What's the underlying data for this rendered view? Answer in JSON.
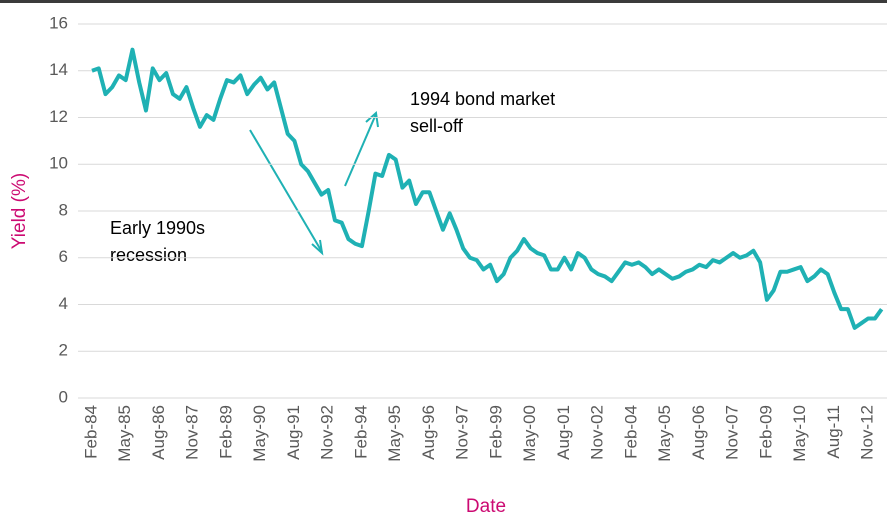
{
  "chart_data": {
    "type": "line",
    "ylabel": "Yield (%)",
    "xlabel": "Date",
    "annotations": [
      [
        "1994 bond market",
        "sell-off"
      ],
      [
        "Early 1990s",
        "recession"
      ]
    ],
    "categories": [
      "Feb-84",
      null,
      null,
      null,
      null,
      "May-85",
      null,
      null,
      null,
      null,
      "Aug-86",
      null,
      null,
      null,
      null,
      "Nov-87",
      null,
      null,
      null,
      null,
      "Feb-89",
      null,
      null,
      null,
      null,
      "May-90",
      null,
      null,
      null,
      null,
      "Aug-91",
      null,
      null,
      null,
      null,
      "Nov-92",
      null,
      null,
      null,
      null,
      "Feb-94",
      null,
      null,
      null,
      null,
      "May-95",
      null,
      null,
      null,
      null,
      "Aug-96",
      null,
      null,
      null,
      null,
      "Nov-97",
      null,
      null,
      null,
      null,
      "Feb-99",
      null,
      null,
      null,
      null,
      "May-00",
      null,
      null,
      null,
      null,
      "Aug-01",
      null,
      null,
      null,
      null,
      "Nov-02",
      null,
      null,
      null,
      null,
      "Feb-04",
      null,
      null,
      null,
      null,
      "May-05",
      null,
      null,
      null,
      null,
      "Aug-06",
      null,
      null,
      null,
      null,
      "Nov-07",
      null,
      null,
      null,
      null,
      "Feb-09",
      null,
      null,
      null,
      null,
      "May-10",
      null,
      null,
      null,
      null,
      "Aug-11",
      null,
      null,
      null,
      null,
      "Nov-12",
      null,
      null
    ],
    "series": [
      {
        "name": "Yield",
        "color": "#1fb1b4",
        "values": [
          14.0,
          14.1,
          13.0,
          13.3,
          13.8,
          13.6,
          14.9,
          13.5,
          12.3,
          14.1,
          13.6,
          13.9,
          13.0,
          12.8,
          13.3,
          12.4,
          11.6,
          12.1,
          11.9,
          12.8,
          13.6,
          13.5,
          13.8,
          13.0,
          13.4,
          13.7,
          13.2,
          13.5,
          12.4,
          11.3,
          11.0,
          10.0,
          9.7,
          9.2,
          8.7,
          8.9,
          7.6,
          7.5,
          6.8,
          6.6,
          6.5,
          8.0,
          9.6,
          9.5,
          10.4,
          10.2,
          9.0,
          9.3,
          8.3,
          8.8,
          8.8,
          8.0,
          7.2,
          7.9,
          7.2,
          6.4,
          6.0,
          5.9,
          5.5,
          5.7,
          5.0,
          5.3,
          6.0,
          6.3,
          6.8,
          6.4,
          6.2,
          6.1,
          5.5,
          5.5,
          6.0,
          5.5,
          6.2,
          6.0,
          5.5,
          5.3,
          5.2,
          5.0,
          5.4,
          5.8,
          5.7,
          5.8,
          5.6,
          5.3,
          5.5,
          5.3,
          5.1,
          5.2,
          5.4,
          5.5,
          5.7,
          5.6,
          5.9,
          5.8,
          6.0,
          6.2,
          6.0,
          6.1,
          6.3,
          5.8,
          4.2,
          4.6,
          5.4,
          5.4,
          5.5,
          5.6,
          5.0,
          5.2,
          5.5,
          5.3,
          4.5,
          3.8,
          3.8,
          3.0,
          3.2,
          3.4,
          3.4,
          3.8
        ]
      }
    ],
    "ylim": [
      0,
      16
    ],
    "yticks": [
      0,
      2,
      4,
      6,
      8,
      10,
      12,
      14,
      16
    ],
    "grid": true
  }
}
